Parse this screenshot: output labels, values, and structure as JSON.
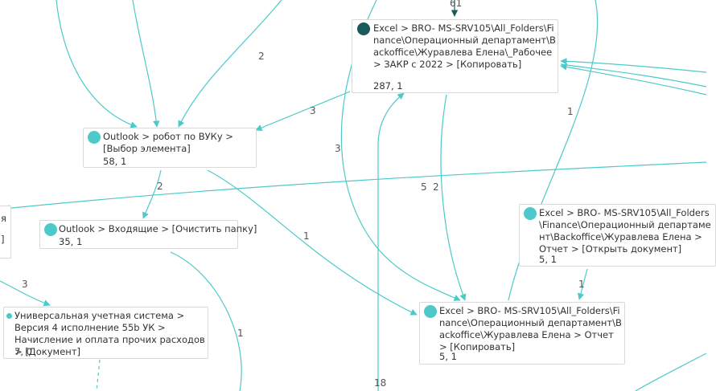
{
  "colors": {
    "edge": "#4ec9c9",
    "node_dot": "#4ec9c9",
    "node_dot_dark": "#1a5a5a",
    "node_border": "#d9d9d9"
  },
  "nodes": {
    "excel_zakr": {
      "title": "Excel > BRO- MS-SRV105\\All_Folders\\Finance\\Операционный департамент\\Backoffice\\Журавлева Елена\\_Рабочее > ЗАКР с 2022 > [Копировать]",
      "stats": "287, 1",
      "dot": "dark"
    },
    "outlook_vuku": {
      "title": "Outlook > робот по ВУКу > [Выбор элемента]",
      "stats": "58, 1",
      "dot": "light"
    },
    "outlook_inbox": {
      "title": "Outlook > Входящие > [Очистить папку]",
      "stats": "35, 1",
      "dot": "light"
    },
    "excel_open": {
      "title": "Excel > BRO- MS-SRV105\\All_Folders\\Finance\\Операционный департамент\\Backoffice\\Журавлева Елена > Отчет > [Открыть документ]",
      "stats": "5, 1",
      "dot": "light"
    },
    "excel_copy": {
      "title": "Excel > BRO- MS-SRV105\\All_Folders\\Finance\\Операционный департамент\\Backoffice\\Журавлева Елена > Отчет > [Копировать]",
      "stats": "5, 1",
      "dot": "light"
    },
    "uus": {
      "title": "Универсальная учетная система > Версия 4 исполнение 55b УК > Начисление и оплата прочих расходов > [Документ]",
      "stats": "7, 0",
      "dot": "small"
    },
    "left_partial": {
      "title": "я",
      "title2": "]"
    }
  },
  "edge_labels": {
    "top_in": "61",
    "e2": "2",
    "e3a": "3",
    "e3b": "3",
    "e2b": "2",
    "e5": "5",
    "e2c": "2",
    "e1a": "1",
    "e1b": "1",
    "e1c": "1",
    "e3c": "3",
    "e1d": "1",
    "e18": "18"
  }
}
